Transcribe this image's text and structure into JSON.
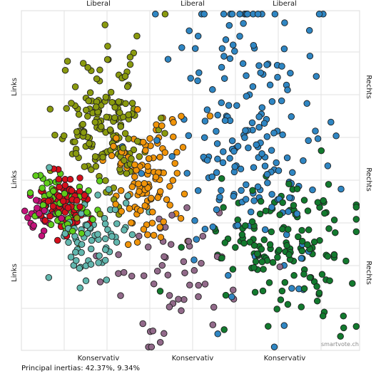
{
  "chart_data": {
    "type": "scatter",
    "axis_labels": {
      "top": [
        "Liberal",
        "Liberal",
        "Liberal"
      ],
      "bottom": [
        "Konservativ",
        "Konservativ",
        "Konservativ"
      ],
      "left": [
        "Links",
        "Links",
        "Links"
      ],
      "right": [
        "Rechts",
        "Rechts",
        "Rechts"
      ]
    },
    "grid": true,
    "watermark": "smartvote.ch",
    "xlim": [
      0,
      100
    ],
    "ylim": [
      0,
      100
    ],
    "series": [
      {
        "color": "#2f86c3",
        "cx": 68,
        "cy": 62,
        "sx": 11,
        "sy": 22,
        "n": 200
      },
      {
        "color": "#8a9a0e",
        "cx": 26,
        "cy": 66,
        "sx": 7,
        "sy": 11,
        "n": 170
      },
      {
        "color": "#127a2e",
        "cx": 78,
        "cy": 30,
        "sx": 11,
        "sy": 10,
        "n": 150
      },
      {
        "color": "#f0940a",
        "cx": 37,
        "cy": 50,
        "sx": 6,
        "sy": 10,
        "n": 110
      },
      {
        "color": "#d40f1c",
        "cx": 12,
        "cy": 43,
        "sx": 4,
        "sy": 4,
        "n": 90
      },
      {
        "color": "#62b7ae",
        "cx": 20,
        "cy": 35,
        "sx": 6,
        "sy": 7,
        "n": 75
      },
      {
        "color": "#5fcd1a",
        "cx": 13,
        "cy": 43,
        "sx": 5,
        "sy": 6,
        "n": 60
      },
      {
        "color": "#926a8a",
        "cx": 46,
        "cy": 22,
        "sx": 11,
        "sy": 9,
        "n": 55
      },
      {
        "color": "#c4127a",
        "cx": 6,
        "cy": 40,
        "sx": 2,
        "sy": 3,
        "n": 22
      }
    ]
  },
  "footer": {
    "inertias": "Principal inertias: 42.37%, 9.34%"
  }
}
